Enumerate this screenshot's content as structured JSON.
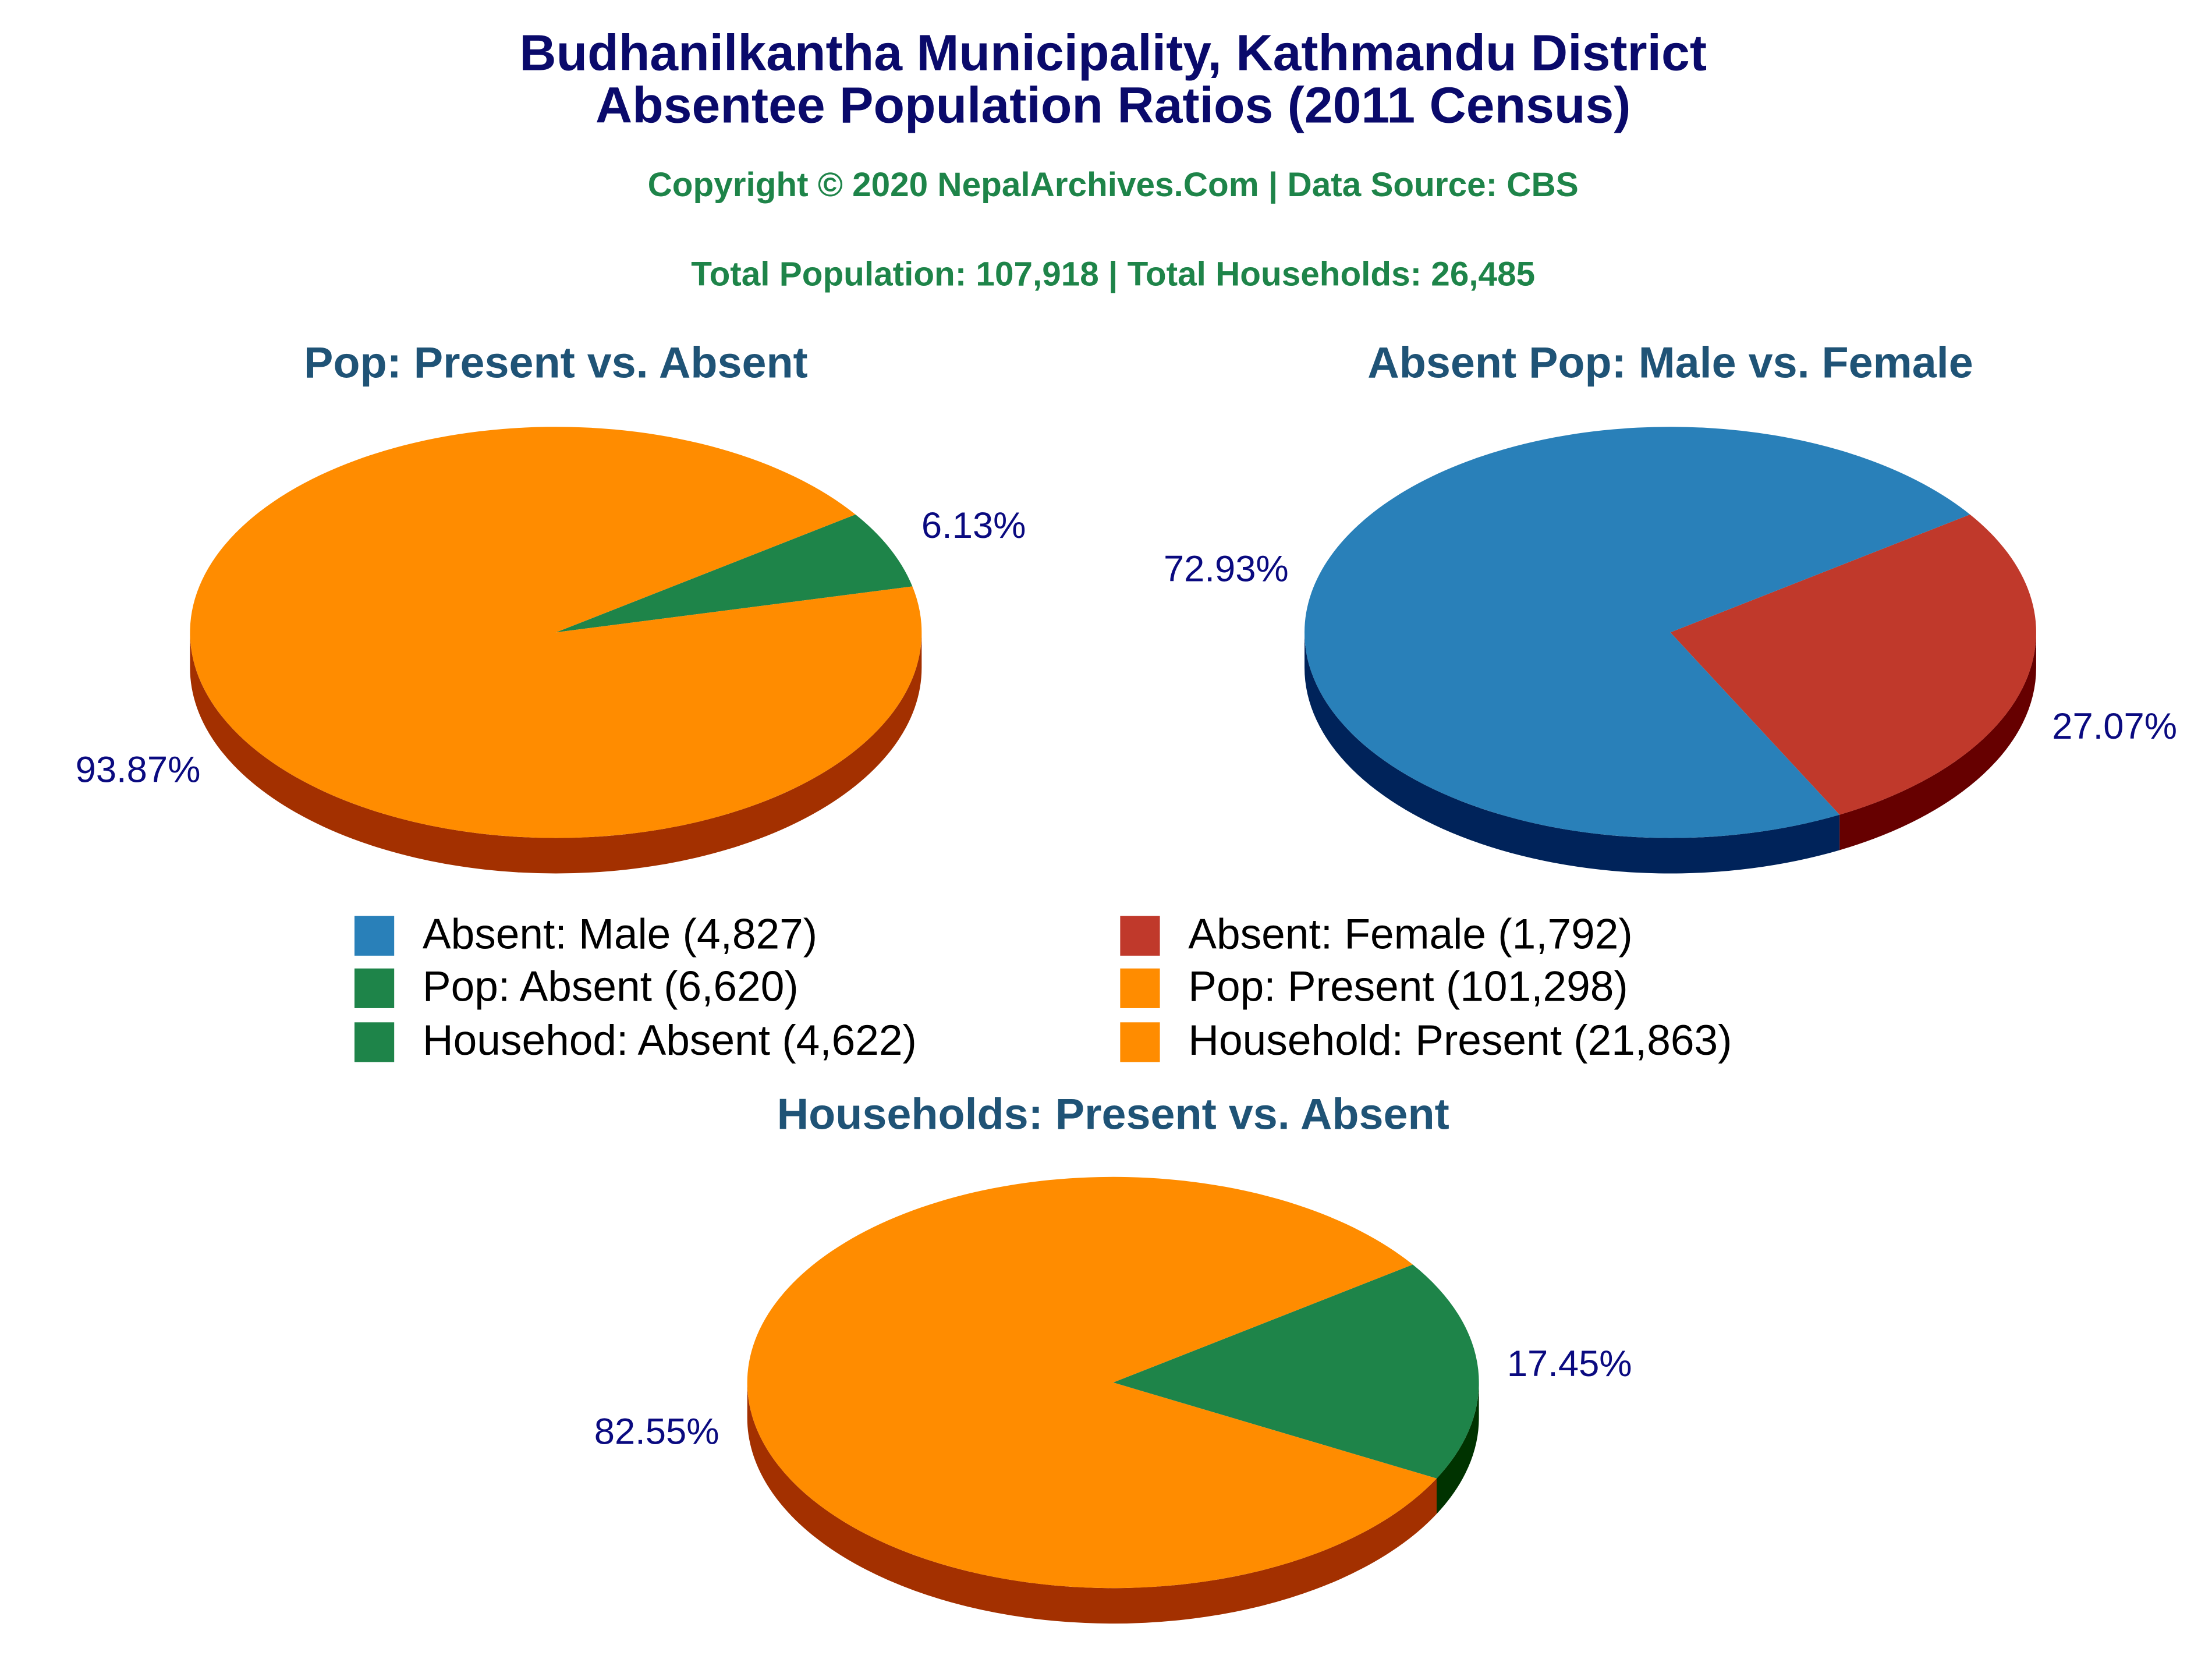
{
  "header": {
    "title": [
      "Budhanilkantha Municipality, Kathmandu District",
      "Absentee Population Ratios (2011 Census)"
    ],
    "subtitle": "Copyright © 2020 NepalArchives.Com | Data Source: CBS",
    "totals": "Total Population: 107,918 | Total Households: 26,485"
  },
  "chart_data": [
    {
      "type": "pie",
      "title": "Pop: Present vs. Absent",
      "categories": [
        "Pop: Absent (6,620)",
        "Pop: Present (101,298)"
      ],
      "values": [
        6.13,
        93.87
      ],
      "value_labels": [
        "6.13%",
        "93.87%"
      ],
      "colors": [
        "#1e8449",
        "#ff8c00"
      ],
      "side_colors": [
        "#003300",
        "#a33000"
      ]
    },
    {
      "type": "pie",
      "title": "Absent Pop: Male vs. Female",
      "categories": [
        "Absent: Female (1,792)",
        "Absent: Male (4,827)"
      ],
      "values": [
        27.07,
        72.93
      ],
      "value_labels": [
        "27.07%",
        "72.93%"
      ],
      "colors": [
        "#c0392b",
        "#2980b9"
      ],
      "side_colors": [
        "#660000",
        "#00235a"
      ]
    },
    {
      "type": "pie",
      "title": "Households: Present vs. Absent",
      "categories": [
        "Househod: Absent (4,622)",
        "Household: Present (21,863)"
      ],
      "values": [
        17.45,
        82.55
      ],
      "value_labels": [
        "17.45%",
        "82.55%"
      ],
      "colors": [
        "#1e8449",
        "#ff8c00"
      ],
      "side_colors": [
        "#003300",
        "#a33000"
      ]
    }
  ]
}
